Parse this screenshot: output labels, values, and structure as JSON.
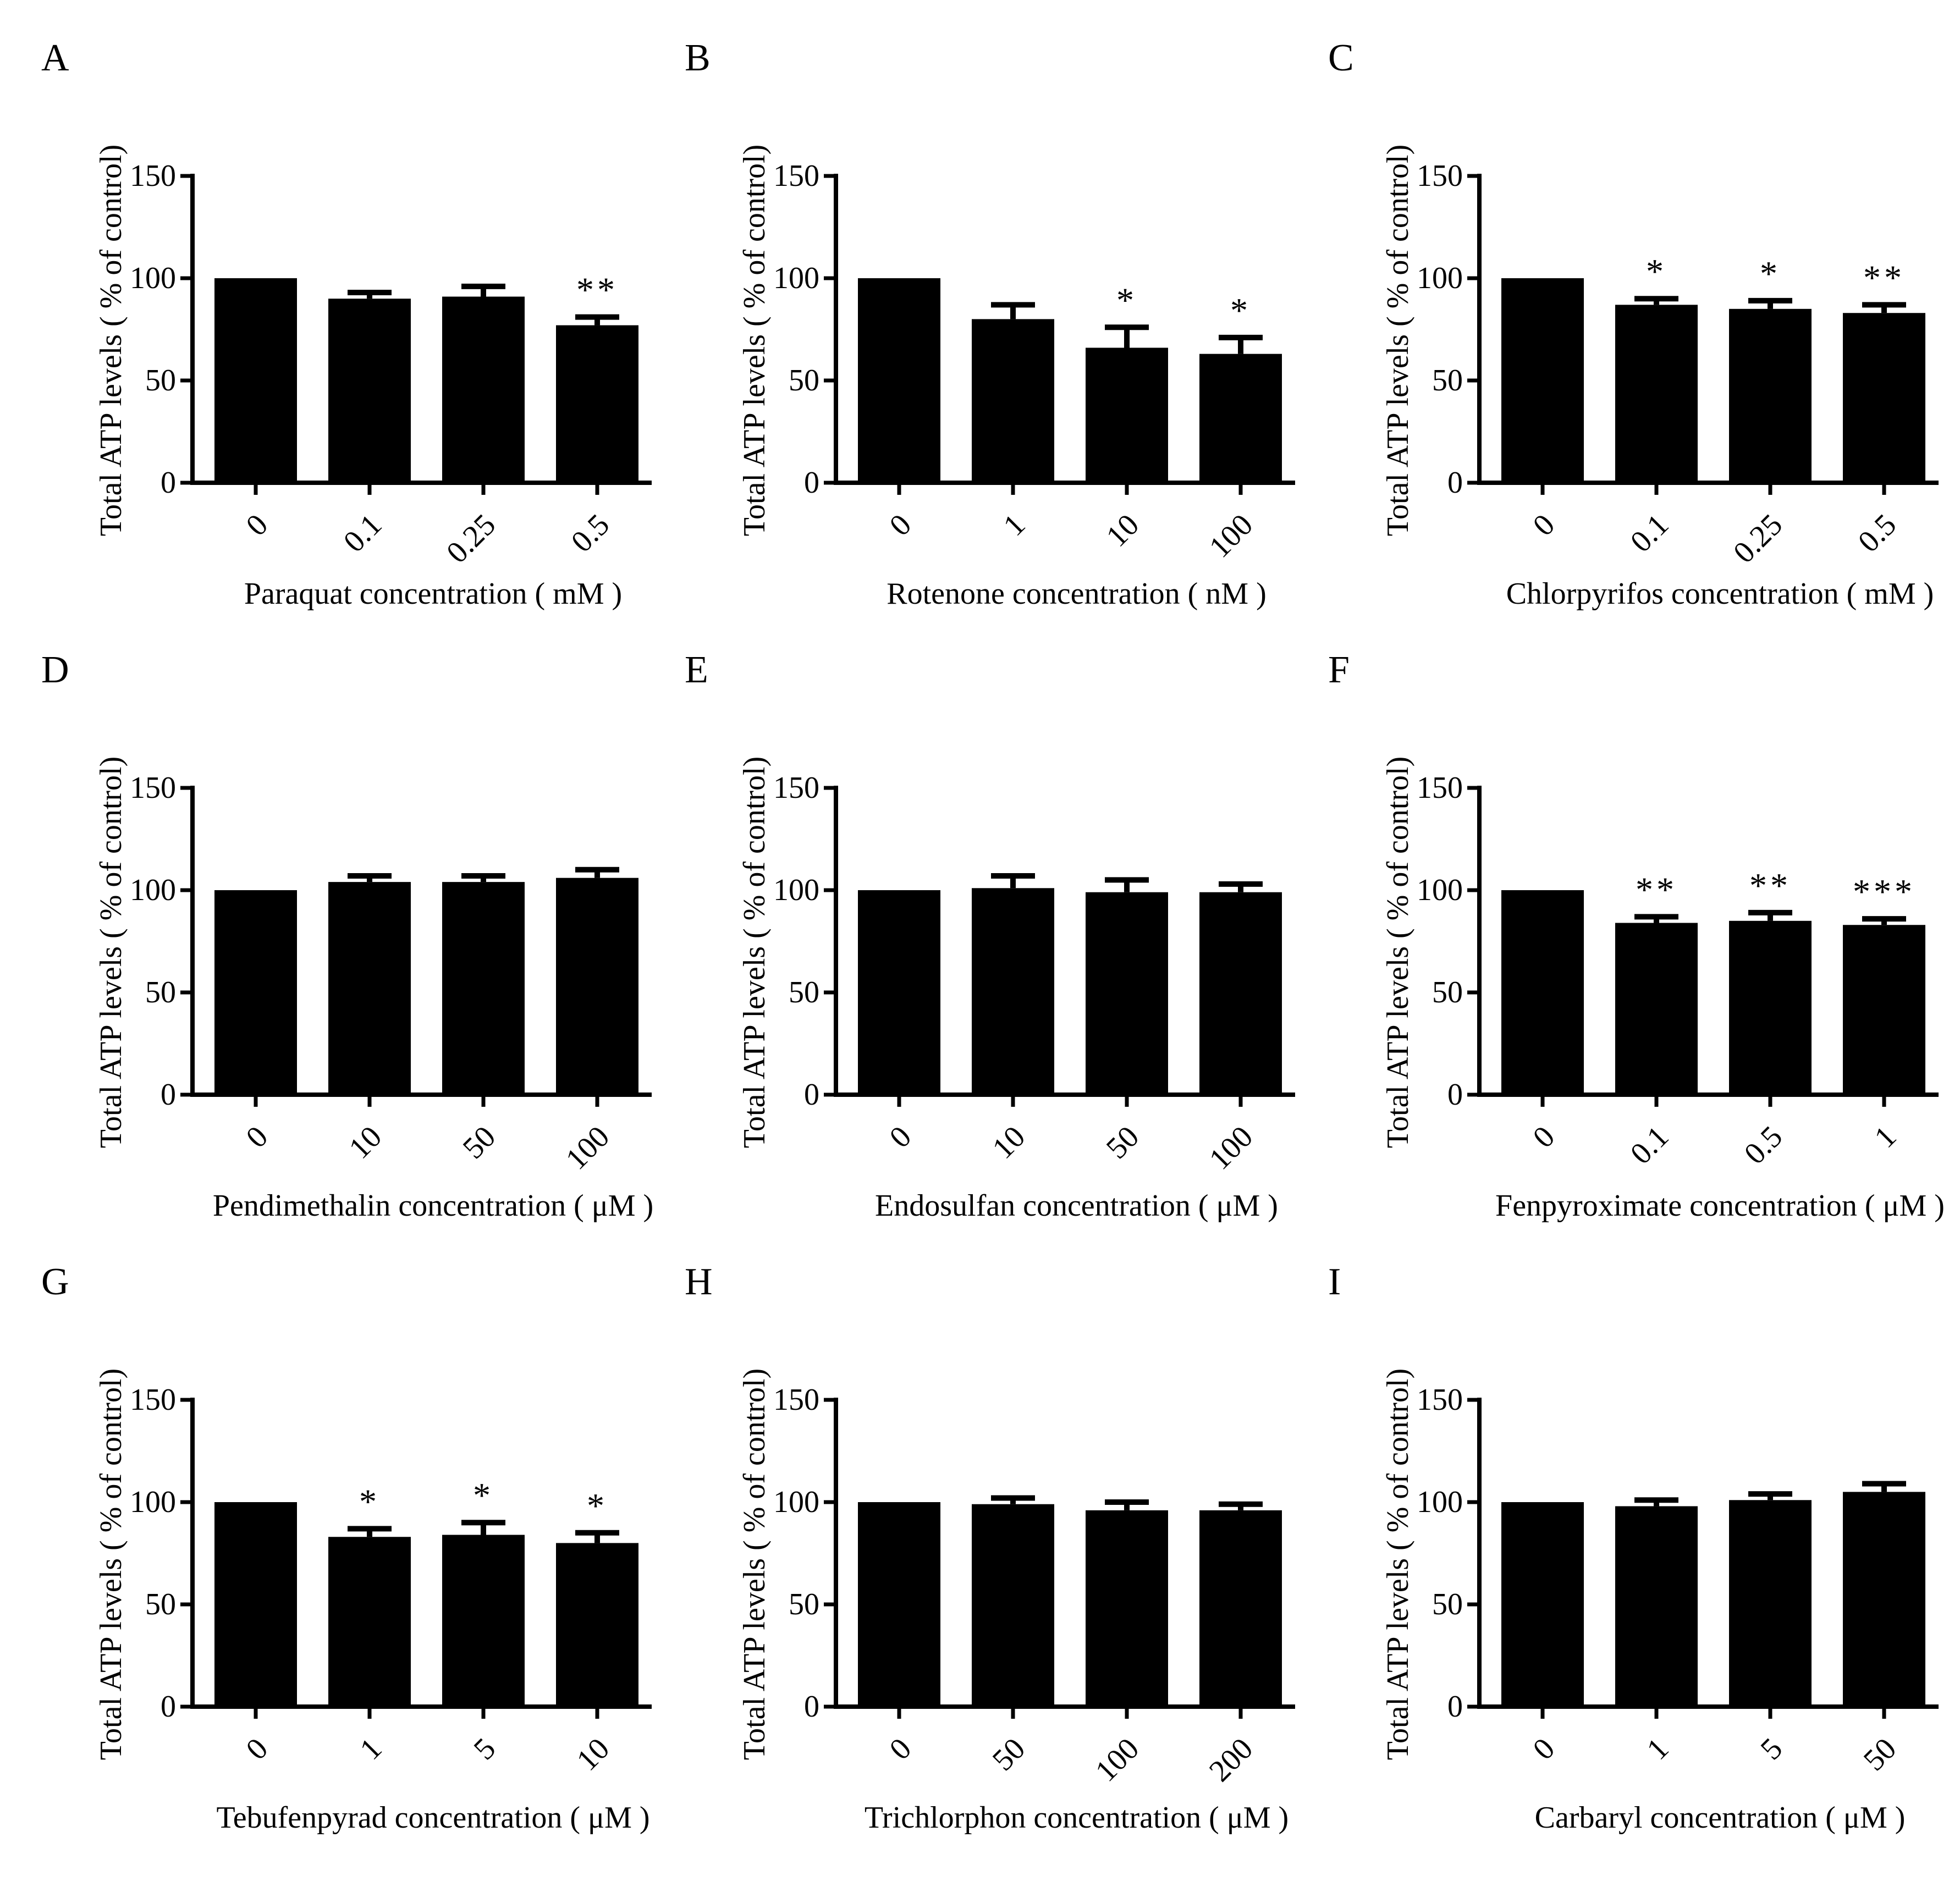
{
  "figure": {
    "ylabel": "Total ATP levels ( % of control)",
    "ylim": [
      0,
      150
    ],
    "yticks": [
      "0",
      "50",
      "100",
      "150"
    ],
    "colors": {
      "bar": "#000000",
      "background": "#ffffff"
    }
  },
  "chart_data": [
    {
      "type": "bar",
      "panel": "A",
      "xlabel": "Paraquat  concentration ( mM )",
      "categories": [
        "0",
        "0.1",
        "0.25",
        "0.5"
      ],
      "values": [
        100,
        90,
        91,
        77
      ],
      "errors": [
        0,
        3,
        5,
        4
      ],
      "significance": [
        "",
        "",
        "",
        "**"
      ]
    },
    {
      "type": "bar",
      "panel": "B",
      "xlabel": "Rotenone  concentration ( nM )",
      "categories": [
        "0",
        "1",
        "10",
        "100"
      ],
      "values": [
        100,
        80,
        66,
        63
      ],
      "errors": [
        0,
        7,
        10,
        8
      ],
      "significance": [
        "",
        "",
        "*",
        "*"
      ]
    },
    {
      "type": "bar",
      "panel": "C",
      "xlabel": "Chlorpyrifos concentration  ( mM )",
      "categories": [
        "0",
        "0.1",
        "0.25",
        "0.5"
      ],
      "values": [
        100,
        87,
        85,
        83
      ],
      "errors": [
        0,
        3,
        4,
        4
      ],
      "significance": [
        "",
        "*",
        "*",
        "**"
      ]
    },
    {
      "type": "bar",
      "panel": "D",
      "xlabel": "Pendimethalin concentration ( μM )",
      "categories": [
        "0",
        "10",
        "50",
        "100"
      ],
      "values": [
        100,
        104,
        104,
        106
      ],
      "errors": [
        0,
        3,
        3,
        4
      ],
      "significance": [
        "",
        "",
        "",
        ""
      ]
    },
    {
      "type": "bar",
      "panel": "E",
      "xlabel": "Endosulfan concentration ( μM )",
      "categories": [
        "0",
        "10",
        "50",
        "100"
      ],
      "values": [
        100,
        101,
        99,
        99
      ],
      "errors": [
        0,
        6,
        6,
        4
      ],
      "significance": [
        "",
        "",
        "",
        ""
      ]
    },
    {
      "type": "bar",
      "panel": "F",
      "xlabel": "Fenpyroximate concentration ( μM )",
      "categories": [
        "0",
        "0.1",
        "0.5",
        "1"
      ],
      "values": [
        100,
        84,
        85,
        83
      ],
      "errors": [
        0,
        3,
        4,
        3
      ],
      "significance": [
        "",
        "**",
        "**",
        "***"
      ]
    },
    {
      "type": "bar",
      "panel": "G",
      "xlabel": "Tebufenpyrad concentration ( μM )",
      "categories": [
        "0",
        "1",
        "5",
        "10"
      ],
      "values": [
        100,
        83,
        84,
        80
      ],
      "errors": [
        0,
        4,
        6,
        5
      ],
      "significance": [
        "",
        "*",
        "*",
        "*"
      ]
    },
    {
      "type": "bar",
      "panel": "H",
      "xlabel": "Trichlorphon concentration ( μM )",
      "categories": [
        "0",
        "50",
        "100",
        "200"
      ],
      "values": [
        100,
        99,
        96,
        96
      ],
      "errors": [
        0,
        3,
        4,
        3
      ],
      "significance": [
        "",
        "",
        "",
        ""
      ]
    },
    {
      "type": "bar",
      "panel": "I",
      "xlabel": "Carbaryl  concentration ( μM )",
      "categories": [
        "0",
        "1",
        "5",
        "50"
      ],
      "values": [
        100,
        98,
        101,
        105
      ],
      "errors": [
        0,
        3,
        3,
        4
      ],
      "significance": [
        "",
        "",
        "",
        ""
      ]
    }
  ]
}
